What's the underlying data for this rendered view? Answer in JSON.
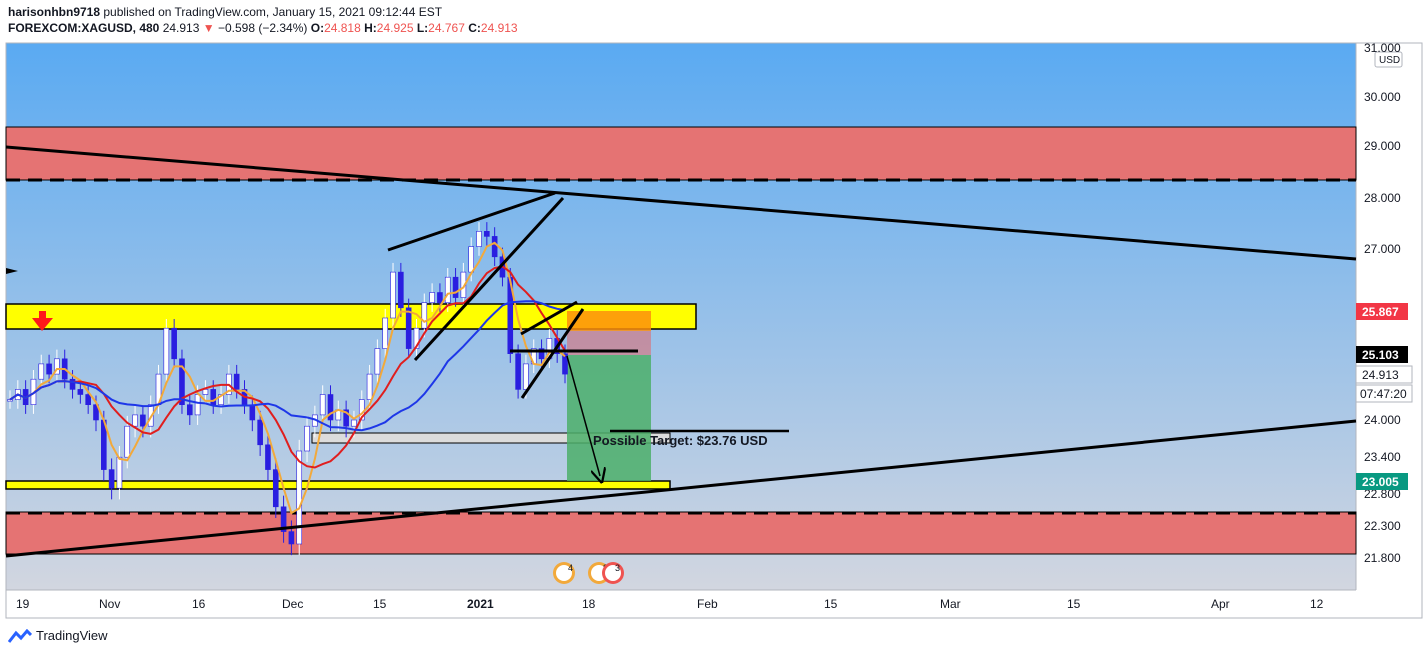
{
  "header": {
    "publisher": "harisonhbn9718",
    "published_text": "published on TradingView.com, January 15, 2021 09:12:44 EST",
    "symbol": "FOREXCOM:XAGUSD, 480",
    "last": "24.913",
    "change": "−0.598 (−2.34%)",
    "open_label": "O:",
    "open": "24.818",
    "high_label": "H:",
    "high": "24.925",
    "low_label": "L:",
    "low": "24.767",
    "close_label": "C:",
    "close": "24.913"
  },
  "footer": {
    "brand": "TradingView"
  },
  "colors": {
    "sky_top": "#5aaaf2",
    "sky_bottom": "#d2d6e0",
    "red_zone": "#e57373",
    "yellow_zone": "#ffff00",
    "candle": "#ffffff",
    "candle_down": "#2a1ee0",
    "ma_blue": "#1e37e8",
    "ma_red": "#e01e1e",
    "ma_orange": "#f2a93b",
    "target_green": "#4caf6a",
    "stop_red": "#ef5350",
    "last_price_red": "#f23645",
    "price_black": "#000000",
    "support_green": "#089981"
  },
  "chart_data": {
    "type": "candlestick",
    "currency": "USD",
    "y_ticks": [
      "31.000",
      "30.000",
      "29.000",
      "28.000",
      "27.000",
      "24.000",
      "23.400",
      "22.800",
      "22.300",
      "21.800"
    ],
    "x_ticks": [
      "19",
      "Nov",
      "16",
      "Dec",
      "15",
      "2021",
      "18",
      "Feb",
      "15",
      "Mar",
      "15",
      "Apr",
      "12"
    ],
    "price_labels": [
      {
        "text": "25.867",
        "style": "red"
      },
      {
        "text": "25.103",
        "style": "black"
      },
      {
        "text": "24.913",
        "style": "plain"
      },
      {
        "text": "07:47:20",
        "style": "plain"
      },
      {
        "text": "23.005",
        "style": "green"
      }
    ],
    "annotations": [
      {
        "text": "Possible Target: $23.76 USD"
      }
    ],
    "event_badges": [
      "4",
      "8",
      "3"
    ],
    "zones": {
      "resistance_red": [
        28.35,
        29.4
      ],
      "supply_yellow": [
        25.8,
        26.3
      ],
      "demand_yellow": [
        22.98,
        23.12
      ],
      "support_red": [
        21.85,
        22.55
      ],
      "grey_box": [
        23.65,
        23.85
      ],
      "short_entry": 25.103,
      "short_stop": 25.867,
      "short_target": 23.005
    },
    "price_series": [
      24.4,
      24.6,
      24.3,
      24.8,
      25.1,
      24.9,
      25.2,
      24.8,
      24.6,
      24.5,
      24.3,
      24.0,
      23.2,
      22.9,
      23.4,
      23.9,
      24.1,
      23.9,
      24.3,
      24.9,
      25.8,
      25.2,
      24.3,
      24.1,
      24.5,
      24.6,
      24.3,
      24.5,
      24.9,
      24.6,
      24.3,
      24.0,
      23.6,
      23.2,
      22.6,
      22.2,
      22.0,
      23.5,
      23.9,
      24.1,
      24.5,
      24.0,
      24.2,
      23.9,
      24.0,
      24.4,
      24.9,
      25.4,
      26.0,
      26.9,
      26.2,
      25.4,
      25.8,
      26.3,
      26.5,
      26.3,
      26.8,
      26.4,
      26.9,
      27.4,
      27.7,
      27.6,
      27.2,
      26.8,
      25.3,
      24.6,
      25.1,
      25.4,
      25.2,
      25.6,
      25.3,
      24.9
    ]
  }
}
